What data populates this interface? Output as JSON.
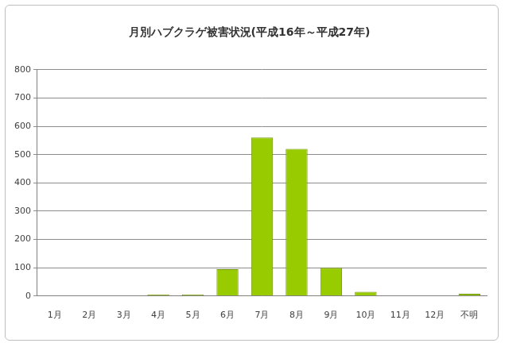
{
  "chart_data": {
    "type": "bar",
    "title": "月別ハブクラゲ被害状況(平成16年～平成27年)",
    "categories": [
      "1月",
      "2月",
      "3月",
      "4月",
      "5月",
      "6月",
      "7月",
      "8月",
      "9月",
      "10月",
      "11月",
      "12月",
      "不明"
    ],
    "values": [
      0,
      0,
      0,
      5,
      5,
      95,
      560,
      520,
      100,
      15,
      0,
      0,
      8
    ],
    "color": "#99cc00",
    "ylim": [
      0,
      800
    ],
    "yticks": [
      0,
      100,
      200,
      300,
      400,
      500,
      600,
      700,
      800
    ],
    "grid": true
  }
}
